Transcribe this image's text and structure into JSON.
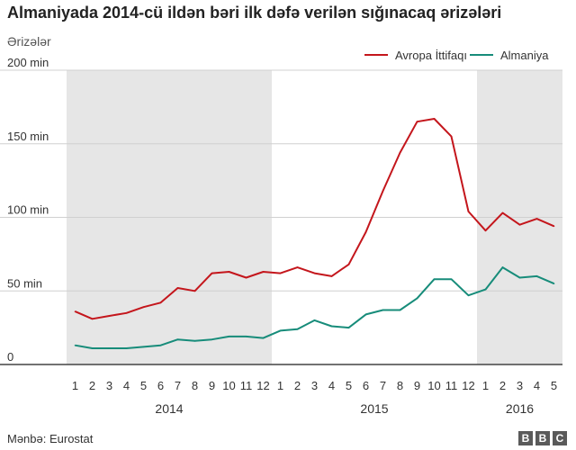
{
  "title": "Almaniyada 2014-cü ildən bəri ilk dəfə verilən sığınacaq ərizələri",
  "source": "Mənbə: Eurostat",
  "brand": [
    "B",
    "B",
    "C"
  ],
  "chart_data": {
    "type": "line",
    "ylabel": "Ərizələr",
    "ylim": [
      0,
      200000
    ],
    "yticks": [
      0,
      50000,
      100000,
      150000,
      200000
    ],
    "ytick_labels": [
      "0",
      "50 min",
      "100 min",
      "150 min",
      "200 min"
    ],
    "categories": [
      "1",
      "2",
      "3",
      "4",
      "5",
      "6",
      "7",
      "8",
      "9",
      "10",
      "11",
      "12",
      "1",
      "2",
      "3",
      "4",
      "5",
      "6",
      "7",
      "8",
      "9",
      "10",
      "11",
      "12",
      "1",
      "2",
      "3",
      "4",
      "5"
    ],
    "years": [
      {
        "label": "2014",
        "start": 0,
        "end": 11
      },
      {
        "label": "2015",
        "start": 12,
        "end": 23
      },
      {
        "label": "2016",
        "start": 24,
        "end": 28
      }
    ],
    "shaded_ranges": [
      [
        0,
        11
      ],
      [
        24,
        28
      ]
    ],
    "legend_position": "top-right",
    "series": [
      {
        "name": "Avropa İttifaqı",
        "color": "#c4161c",
        "values": [
          36000,
          31000,
          33000,
          35000,
          39000,
          42000,
          52000,
          50000,
          62000,
          63000,
          59000,
          63000,
          62000,
          66000,
          62000,
          60000,
          68000,
          90000,
          118000,
          144000,
          165000,
          167000,
          155000,
          104000,
          91000,
          103000,
          95000,
          99000,
          94000
        ]
      },
      {
        "name": "Almaniya",
        "color": "#178c7a",
        "values": [
          13000,
          11000,
          11000,
          11000,
          12000,
          13000,
          17000,
          16000,
          17000,
          19000,
          19000,
          18000,
          23000,
          24000,
          30000,
          26000,
          25000,
          34000,
          37000,
          37000,
          45000,
          58000,
          58000,
          47000,
          51000,
          66000,
          59000,
          60000,
          55000
        ]
      }
    ]
  }
}
